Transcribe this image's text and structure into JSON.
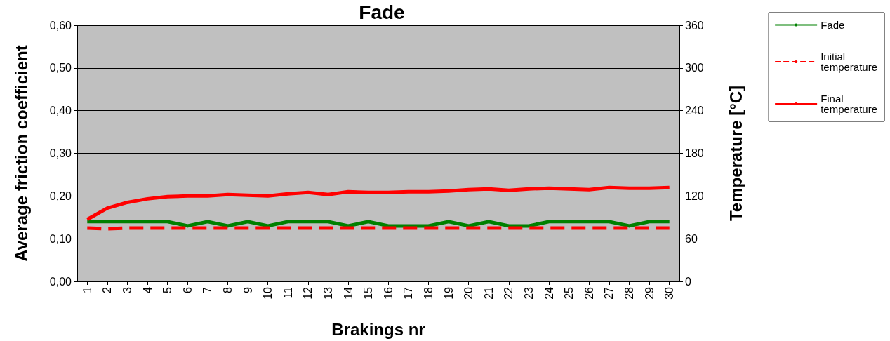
{
  "chart_data": {
    "type": "line",
    "title": "Fade",
    "xlabel": "Brakings nr",
    "ylabel": "Average friction coefficient",
    "y2label": "Temperature [°C]",
    "categories": [
      "1",
      "2",
      "3",
      "4",
      "5",
      "6",
      "7",
      "8",
      "9",
      "10",
      "11",
      "12",
      "13",
      "14",
      "15",
      "16",
      "17",
      "18",
      "19",
      "20",
      "21",
      "22",
      "23",
      "24",
      "25",
      "26",
      "27",
      "28",
      "29",
      "30"
    ],
    "series": [
      {
        "name": "Fade",
        "color": "#008000",
        "values": [
          0.14,
          0.14,
          0.14,
          0.14,
          0.14,
          0.13,
          0.14,
          0.13,
          0.14,
          0.13,
          0.14,
          0.14,
          0.14,
          0.13,
          0.14,
          0.13,
          0.13,
          0.13,
          0.14,
          0.13,
          0.14,
          0.13,
          0.13,
          0.14,
          0.14,
          0.14,
          0.14,
          0.13,
          0.14,
          0.14
        ]
      },
      {
        "name": "Initial temperature",
        "color": "#ff0000",
        "axis": "y2",
        "line_style": "dashed",
        "values": [
          75,
          74,
          75,
          75,
          75,
          75,
          75,
          75,
          75,
          75,
          75,
          75,
          75,
          75,
          75,
          75,
          75,
          75,
          75,
          75,
          75,
          75,
          75,
          75,
          75,
          75,
          75,
          75,
          75,
          75
        ]
      },
      {
        "name": "Final temperature",
        "color": "#ff0000",
        "axis": "y2",
        "line_style": "solid",
        "values": [
          87,
          103,
          111,
          116,
          119,
          120,
          120,
          122,
          121,
          120,
          123,
          125,
          122,
          126,
          125,
          125,
          126,
          126,
          127,
          129,
          130,
          128,
          130,
          131,
          130,
          129,
          132,
          131,
          131,
          132
        ]
      }
    ],
    "ylim": [
      0,
      0.6
    ],
    "yticks": [
      {
        "value": 0,
        "label": "0,00"
      },
      {
        "value": 0.1,
        "label": "0,10"
      },
      {
        "value": 0.2,
        "label": "0,20"
      },
      {
        "value": 0.3,
        "label": "0,30"
      },
      {
        "value": 0.4,
        "label": "0,40"
      },
      {
        "value": 0.5,
        "label": "0,50"
      },
      {
        "value": 0.6,
        "label": "0,60"
      }
    ],
    "y2lim": [
      0,
      360
    ],
    "y2ticks": [
      0,
      60,
      120,
      180,
      240,
      300,
      360
    ],
    "grid": "y",
    "legend": "top right",
    "marker": "none"
  }
}
